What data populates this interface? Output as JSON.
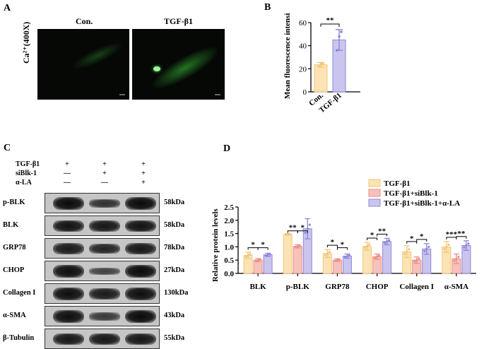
{
  "panel_a": {
    "letter": "A",
    "col_labels": [
      "Con.",
      "TGF-β1"
    ],
    "row_label": "Ca²⁺(400X)"
  },
  "panel_c": {
    "letter": "C",
    "condition_rows": [
      {
        "label": "TGF-β1",
        "marks": [
          "+",
          "+",
          "+"
        ]
      },
      {
        "label": "siBlk-1",
        "marks": [
          "—",
          "+",
          "+"
        ]
      },
      {
        "label": "α-LA",
        "marks": [
          "—",
          "—",
          "+"
        ]
      }
    ],
    "blots": [
      {
        "label": "p-BLK",
        "size": "58kDa",
        "intensity": [
          1.0,
          0.55,
          1.0
        ]
      },
      {
        "label": "BLK",
        "size": "58kDa",
        "intensity": [
          0.9,
          0.85,
          0.9
        ]
      },
      {
        "label": "GRP78",
        "size": "78kDa",
        "intensity": [
          0.8,
          0.7,
          0.85
        ]
      },
      {
        "label": "CHOP",
        "size": "27kDa",
        "intensity": [
          0.95,
          0.35,
          1.0
        ]
      },
      {
        "label": "Collagen I",
        "size": "130kDa",
        "intensity": [
          0.95,
          0.8,
          0.95
        ]
      },
      {
        "label": "α-SMA",
        "size": "43kDa",
        "intensity": [
          0.95,
          0.45,
          1.0
        ]
      },
      {
        "label": "β-Tubulin",
        "size": "55kDa",
        "intensity": [
          0.85,
          0.85,
          0.85
        ]
      }
    ]
  },
  "chart_data": [
    {
      "panel": "B",
      "type": "bar",
      "categories": [
        "Con.",
        "TGF-β1"
      ],
      "values": [
        23.5,
        45
      ],
      "errors": [
        2,
        9
      ],
      "points": [
        [
          22,
          24,
          24.5
        ],
        [
          36,
          48,
          52
        ]
      ],
      "colors": [
        "#fbe3b4",
        "#c9c5ee"
      ],
      "edge_colors": [
        "#f2c77b",
        "#8f86d8"
      ],
      "ylabel": "Mean fluorescence intensity",
      "yticks": [
        0,
        20,
        40,
        60
      ],
      "ylim": [
        0,
        60
      ],
      "significance": [
        {
          "from": 0,
          "to": 1,
          "label": "**"
        }
      ]
    },
    {
      "panel": "D",
      "type": "bar",
      "categories": [
        "BLK",
        "p-BLK",
        "GRP78",
        "CHOP",
        "Collagen I",
        "α-SMA"
      ],
      "series": [
        {
          "name": "TGF-β1",
          "values": [
            0.68,
            1.47,
            0.75,
            1.02,
            0.82,
            1.0
          ],
          "errors": [
            0.12,
            0.03,
            0.15,
            0.15,
            0.22,
            0.2
          ]
        },
        {
          "name": "TGF-β1+siBlk-1",
          "values": [
            0.5,
            1.02,
            0.5,
            0.63,
            0.5,
            0.55
          ],
          "errors": [
            0.06,
            0.06,
            0.05,
            0.1,
            0.12,
            0.18
          ]
        },
        {
          "name": "TGF-β1+siBlk-1+α-LA",
          "values": [
            0.7,
            1.68,
            0.65,
            1.2,
            0.92,
            1.05
          ],
          "errors": [
            0.06,
            0.38,
            0.08,
            0.12,
            0.2,
            0.18
          ]
        }
      ],
      "colors": [
        "#fbe3b4",
        "#f6c2bb",
        "#c9c5ee"
      ],
      "edge_colors": [
        "#f2c77b",
        "#ee8e84",
        "#8f86d8"
      ],
      "ylabel": "Relative protein levels",
      "yticks": [
        0.0,
        0.5,
        1.0,
        1.5,
        2.0,
        2.5
      ],
      "ytick_labels": [
        "0.0",
        "0.5",
        "1.0",
        "1.5",
        "2.0",
        "2.5"
      ],
      "ylim": [
        0,
        2.5
      ],
      "legend": "top-right",
      "significance": [
        {
          "cat": 0,
          "from": 0,
          "to": 1,
          "label": "*"
        },
        {
          "cat": 0,
          "from": 1,
          "to": 2,
          "label": "*"
        },
        {
          "cat": 1,
          "from": 0,
          "to": 1,
          "label": "**"
        },
        {
          "cat": 1,
          "from": 1,
          "to": 2,
          "label": "*"
        },
        {
          "cat": 2,
          "from": 0,
          "to": 1,
          "label": "*"
        },
        {
          "cat": 2,
          "from": 1,
          "to": 2,
          "label": "*"
        },
        {
          "cat": 3,
          "from": 0,
          "to": 1,
          "label": "*"
        },
        {
          "cat": 3,
          "from": 1,
          "to": 2,
          "label": "**"
        },
        {
          "cat": 4,
          "from": 0,
          "to": 1,
          "label": "*"
        },
        {
          "cat": 4,
          "from": 1,
          "to": 2,
          "label": "*"
        },
        {
          "cat": 5,
          "from": 0,
          "to": 1,
          "label": "***"
        },
        {
          "cat": 5,
          "from": 1,
          "to": 2,
          "label": "**"
        }
      ]
    }
  ],
  "panel_b": {
    "letter": "B"
  },
  "panel_d": {
    "letter": "D"
  }
}
